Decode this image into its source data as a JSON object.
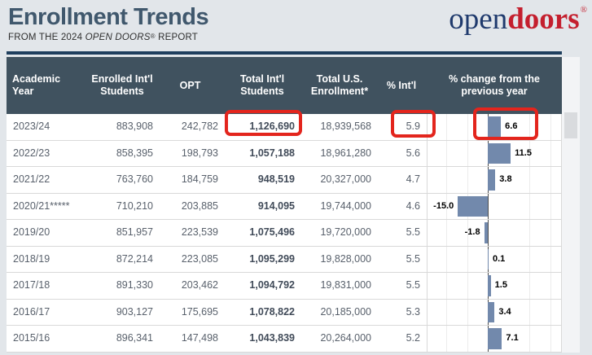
{
  "page": {
    "background": "#e2e6ea"
  },
  "header": {
    "title": "Enrollment Trends",
    "subtitle": {
      "prefix": "FROM THE 2024 ",
      "italic": "OPEN DOORS",
      "reg": "®",
      "suffix": " REPORT"
    },
    "logo": {
      "open": "open",
      "doors": "doors",
      "reg": "®",
      "open_color": "#1f3a6d",
      "doors_color": "#c41f2e"
    }
  },
  "colors": {
    "table_header_bg": "#40525f",
    "table_top_rule": "#1f3f5e",
    "bar": "#7289ac",
    "highlight_box": "#e3251d",
    "title_text": "#40586d"
  },
  "chart_data": {
    "type": "table",
    "title": "Enrollment Trends",
    "subtitle": "FROM THE 2024 OPEN DOORS® REPORT",
    "columns": [
      "Academic Year",
      "Enrolled Int'l Students",
      "OPT",
      "Total Int'l Students",
      "Total U.S. Enrollment*",
      "% Int'l",
      "% change from the previous year"
    ],
    "bar_column": {
      "name": "% change from the previous year",
      "type": "bar",
      "color": "#7289ac",
      "axis_at_zero": true,
      "values": [
        6.6,
        11.5,
        3.8,
        -15.0,
        -1.8,
        0.1,
        1.5,
        3.4,
        7.1
      ]
    },
    "rows": [
      {
        "year": "2023/24",
        "enrolled": "883,908",
        "opt": "242,782",
        "total_intl": "1,126,690",
        "total_us": "18,939,568",
        "pct_intl": "5.9",
        "pct_change": 6.6,
        "pct_change_label": "6.6"
      },
      {
        "year": "2022/23",
        "enrolled": "858,395",
        "opt": "198,793",
        "total_intl": "1,057,188",
        "total_us": "18,961,280",
        "pct_intl": "5.6",
        "pct_change": 11.5,
        "pct_change_label": "11.5"
      },
      {
        "year": "2021/22",
        "enrolled": "763,760",
        "opt": "184,759",
        "total_intl": "948,519",
        "total_us": "20,327,000",
        "pct_intl": "4.7",
        "pct_change": 3.8,
        "pct_change_label": "3.8"
      },
      {
        "year": "2020/21*****",
        "enrolled": "710,210",
        "opt": "203,885",
        "total_intl": "914,095",
        "total_us": "19,744,000",
        "pct_intl": "4.6",
        "pct_change": -15.0,
        "pct_change_label": "-15.0"
      },
      {
        "year": "2019/20",
        "enrolled": "851,957",
        "opt": "223,539",
        "total_intl": "1,075,496",
        "total_us": "19,720,000",
        "pct_intl": "5.5",
        "pct_change": -1.8,
        "pct_change_label": "-1.8"
      },
      {
        "year": "2018/19",
        "enrolled": "872,214",
        "opt": "223,085",
        "total_intl": "1,095,299",
        "total_us": "19,828,000",
        "pct_intl": "5.5",
        "pct_change": 0.1,
        "pct_change_label": "0.1"
      },
      {
        "year": "2017/18",
        "enrolled": "891,330",
        "opt": "203,462",
        "total_intl": "1,094,792",
        "total_us": "19,831,000",
        "pct_intl": "5.5",
        "pct_change": 1.5,
        "pct_change_label": "1.5"
      },
      {
        "year": "2016/17",
        "enrolled": "903,127",
        "opt": "175,695",
        "total_intl": "1,078,822",
        "total_us": "20,185,000",
        "pct_intl": "5.3",
        "pct_change": 3.4,
        "pct_change_label": "3.4"
      },
      {
        "year": "2015/16",
        "enrolled": "896,341",
        "opt": "147,498",
        "total_intl": "1,043,839",
        "total_us": "20,264,000",
        "pct_intl": "5.2",
        "pct_change": 7.1,
        "pct_change_label": "7.1"
      }
    ]
  },
  "annotations": {
    "color": "#e3251d",
    "boxes": [
      "total-intl-students-2023/24",
      "pct-intl-2023/24",
      "pct-change-bar-2023/24"
    ]
  }
}
